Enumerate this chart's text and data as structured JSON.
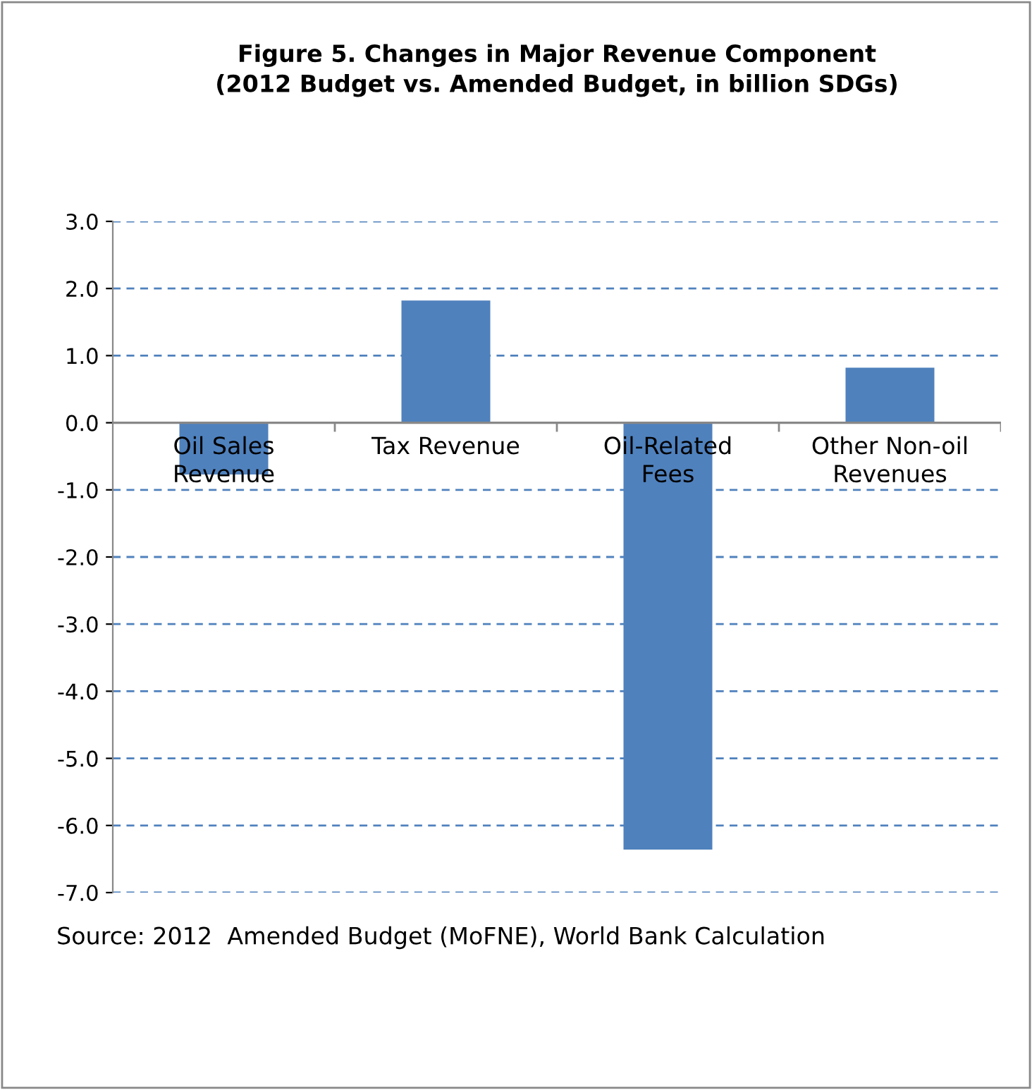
{
  "chart_data": {
    "type": "bar",
    "title": "Figure 5. Changes in Major Revenue Component\n(2012 Budget vs. Amended Budget, in billion SDGs)",
    "categories": [
      "Oil Sales\nRevenue",
      "Tax Revenue",
      "Oil-Related\nFees",
      "Other Non-oil\nRevenues"
    ],
    "values": [
      -0.77,
      1.82,
      -6.36,
      0.82
    ],
    "color": "#4f81bd",
    "ylim": [
      -7,
      3
    ],
    "yticks": [
      {
        "value": 3,
        "label": "3.0"
      },
      {
        "value": 2,
        "label": "2.0"
      },
      {
        "value": 1,
        "label": "1.0"
      },
      {
        "value": 0,
        "label": "0.0"
      },
      {
        "value": -1,
        "label": "-1.0"
      },
      {
        "value": -2,
        "label": "-2.0"
      },
      {
        "value": -3,
        "label": "-3.0"
      },
      {
        "value": -4,
        "label": "-4.0"
      },
      {
        "value": -5,
        "label": "-5.0"
      },
      {
        "value": -6,
        "label": "-6.0"
      },
      {
        "value": -7,
        "label": "-7.0"
      }
    ],
    "grid": "y",
    "legend": false,
    "annotations": [
      "Source: 2012  Amended Budget (MoFNE), World Bank Calculation"
    ]
  }
}
